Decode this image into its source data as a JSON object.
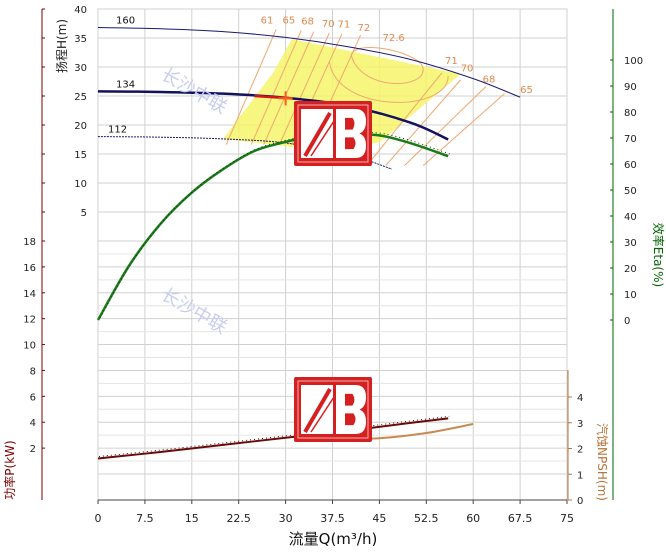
{
  "chart_data": {
    "type": "line",
    "x_axis": {
      "label": "流量Q(m³/h)",
      "range": [
        0,
        75
      ],
      "ticks": [
        0,
        7.5,
        15,
        22.5,
        30,
        37.5,
        45,
        52.5,
        60,
        67.5,
        75
      ],
      "tick_labels": [
        "0",
        "7.5",
        "15",
        "22.5",
        "30",
        "37.5",
        "45",
        "52.5",
        "60",
        "67.5",
        "75"
      ]
    },
    "y_axes": {
      "head": {
        "label": "扬程H(m)",
        "range": [
          0,
          40
        ],
        "ticks": [
          5,
          10,
          15,
          20,
          25,
          30,
          35,
          40
        ],
        "color": "#7a0000"
      },
      "power": {
        "label": "功率P(kW)",
        "range": [
          0,
          18
        ],
        "ticks": [
          2,
          4,
          6,
          8,
          10,
          12,
          14,
          16,
          18
        ],
        "color": "#7a0000"
      },
      "efficiency": {
        "label": "效率Eta(%)",
        "range": [
          0,
          100
        ],
        "ticks": [
          0,
          10,
          20,
          30,
          40,
          50,
          60,
          70,
          80,
          90,
          100
        ],
        "color": "#006400"
      },
      "npsh": {
        "label": "汽蚀NPSH(m)",
        "range": [
          0,
          4
        ],
        "ticks": [
          0,
          1,
          2,
          3,
          4
        ],
        "color": "#b8743a"
      }
    },
    "head_curves": [
      {
        "name": "160",
        "x": [
          0,
          10,
          20,
          30,
          40,
          50,
          60,
          67.5
        ],
        "y": [
          36.8,
          36.6,
          36.1,
          35.1,
          33.5,
          31.3,
          28.0,
          24.8
        ]
      },
      {
        "name": "134",
        "x": [
          0,
          10,
          20,
          30,
          40,
          50,
          56
        ],
        "y": [
          25.8,
          25.7,
          25.4,
          24.7,
          23.3,
          20.4,
          17.5
        ]
      },
      {
        "name": "112",
        "x": [
          0,
          10,
          20,
          30,
          40,
          47
        ],
        "y": [
          18.0,
          17.9,
          17.6,
          16.9,
          14.9,
          12.4
        ]
      }
    ],
    "efficiency_curve": {
      "x": [
        0,
        5,
        10,
        15,
        20,
        25,
        30,
        35,
        40,
        45,
        50,
        56
      ],
      "y": [
        0,
        21,
        37,
        49,
        58,
        65,
        68.5,
        71,
        71.5,
        71,
        68,
        63
      ]
    },
    "power_curve": {
      "x": [
        0,
        10,
        20,
        30,
        40,
        50,
        56
      ],
      "y": [
        1.2,
        1.7,
        2.25,
        2.8,
        3.35,
        3.95,
        4.3
      ]
    },
    "npsh_curve": {
      "x": [
        37,
        45,
        52.5,
        60
      ],
      "y": [
        2.38,
        2.4,
        2.6,
        2.95
      ]
    },
    "efficiency_iso_labels": [
      "61",
      "65",
      "68",
      "70",
      "71",
      "72",
      "72.6",
      "71",
      "70",
      "68",
      "65"
    ],
    "operating_point": {
      "x": 30,
      "y": 24.6
    },
    "watermark": "长沙中联"
  }
}
